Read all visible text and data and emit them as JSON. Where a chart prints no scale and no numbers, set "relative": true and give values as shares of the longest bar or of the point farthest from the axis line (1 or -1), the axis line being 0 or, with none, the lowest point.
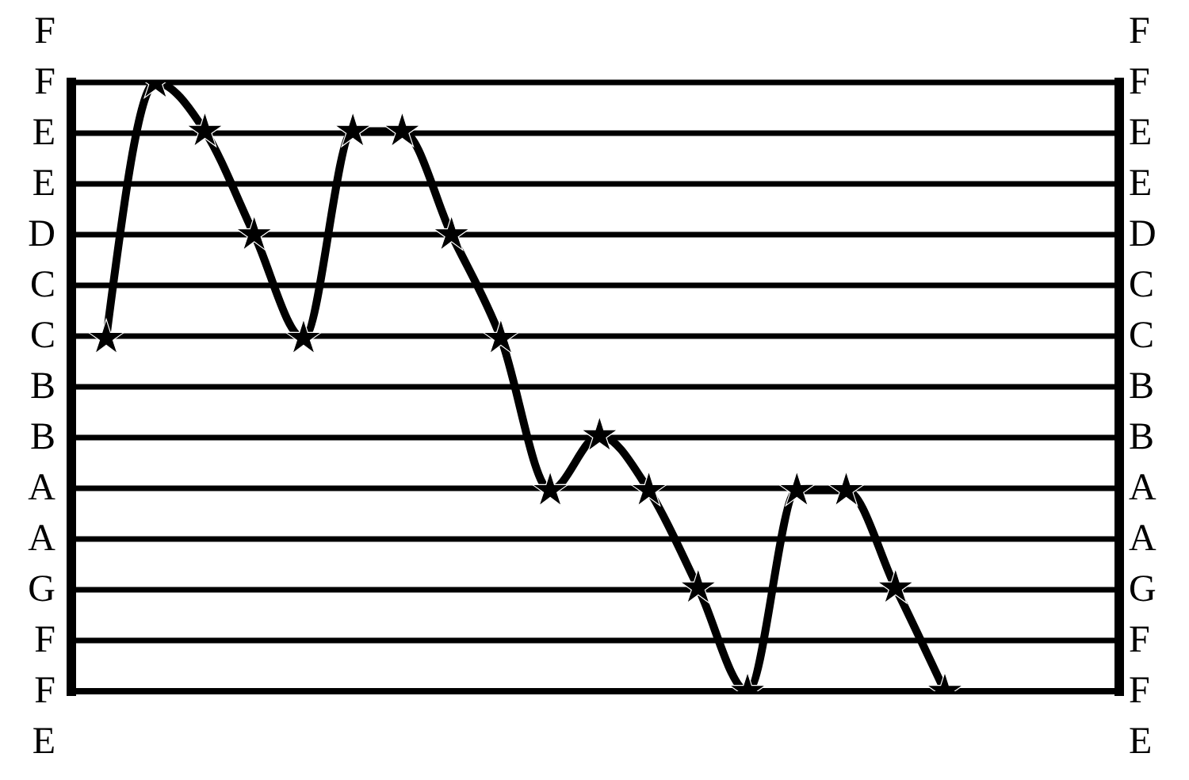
{
  "chart_data": {
    "type": "line",
    "categories": [
      null,
      null,
      null,
      null,
      null,
      null,
      null,
      null,
      null,
      null,
      null,
      null,
      null,
      null,
      null,
      null,
      null,
      null
    ],
    "series": [
      {
        "color": "#000000",
        "values": [
          0.58,
          1,
          0.92,
          0.75,
          0.58,
          0.92,
          0.92,
          0.75,
          0.58,
          0.33,
          0.42,
          0.33,
          0.17,
          0,
          0.33,
          0.33,
          0.17,
          0
        ]
      }
    ],
    "relative": true,
    "annotations": [
      "F",
      "F",
      "E",
      "E",
      "D",
      "C",
      "C",
      "B",
      "B",
      "A",
      "A",
      "G",
      "F",
      "F",
      "E",
      "F",
      "F",
      "E",
      "E",
      "D",
      "C",
      "C",
      "B",
      "B",
      "A",
      "A",
      "G",
      "F",
      "F",
      "E"
    ],
    "grid": true,
    "marker": "star",
    "line_style": "solid"
  }
}
